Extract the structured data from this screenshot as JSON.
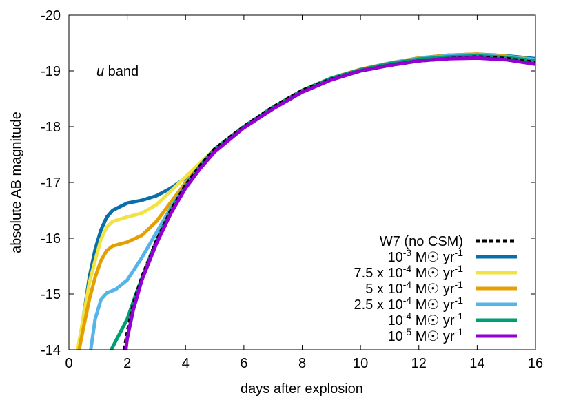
{
  "chart_data": {
    "type": "line",
    "annotation": {
      "italic": "u",
      "rest": " band"
    },
    "xlabel": "days after explosion",
    "ylabel": "absolute AB magnitude",
    "xlim": [
      0,
      16
    ],
    "ylim": [
      -14,
      -20
    ],
    "y_inverted": true,
    "xticks": [
      0,
      2,
      4,
      6,
      8,
      10,
      12,
      14,
      16
    ],
    "yticks": [
      -20,
      -19,
      -18,
      -17,
      -16,
      -15,
      -14
    ],
    "legend_position": "bottom-right",
    "grid": false,
    "series": [
      {
        "name": "W7 (no CSM)",
        "label_parts": {
          "pre": "W7 (no CSM)"
        },
        "color": "#000000",
        "dashed": true,
        "width": 5,
        "points": [
          [
            1.9,
            -14
          ],
          [
            2,
            -14.3
          ],
          [
            2.2,
            -14.8
          ],
          [
            2.5,
            -15.3
          ],
          [
            3,
            -15.95
          ],
          [
            3.5,
            -16.5
          ],
          [
            4,
            -16.95
          ],
          [
            4.5,
            -17.3
          ],
          [
            5,
            -17.6
          ],
          [
            6,
            -18.0
          ],
          [
            7,
            -18.35
          ],
          [
            8,
            -18.65
          ],
          [
            9,
            -18.85
          ],
          [
            10,
            -19.0
          ],
          [
            11,
            -19.1
          ],
          [
            12,
            -19.18
          ],
          [
            13,
            -19.22
          ],
          [
            14,
            -19.25
          ],
          [
            15,
            -19.22
          ],
          [
            16,
            -19.15
          ]
        ]
      },
      {
        "name": "10-3 M☉ yr-1",
        "label_parts": {
          "pre": "10",
          "sup1": "-3",
          "mid": " M☉ yr",
          "sup2": "-1"
        },
        "color": "#0a6ea8",
        "dashed": false,
        "width": 5,
        "points": [
          [
            0.35,
            -14
          ],
          [
            0.5,
            -14.6
          ],
          [
            0.7,
            -15.3
          ],
          [
            0.9,
            -15.8
          ],
          [
            1.1,
            -16.15
          ],
          [
            1.3,
            -16.38
          ],
          [
            1.5,
            -16.5
          ],
          [
            2,
            -16.63
          ],
          [
            2.5,
            -16.68
          ],
          [
            3,
            -16.76
          ],
          [
            3.5,
            -16.9
          ],
          [
            4,
            -17.08
          ],
          [
            4.5,
            -17.32
          ],
          [
            5,
            -17.6
          ],
          [
            6,
            -18.0
          ],
          [
            7,
            -18.35
          ],
          [
            8,
            -18.65
          ],
          [
            9,
            -18.87
          ],
          [
            10,
            -19.02
          ],
          [
            11,
            -19.14
          ],
          [
            12,
            -19.23
          ],
          [
            13,
            -19.28
          ],
          [
            14,
            -19.3
          ],
          [
            15,
            -19.27
          ],
          [
            16,
            -19.22
          ]
        ]
      },
      {
        "name": "7.5 x 10-4 M☉ yr-1",
        "label_parts": {
          "pre": "7.5 x 10",
          "sup1": "-4",
          "mid": " M☉ yr",
          "sup2": "-1"
        },
        "color": "#f0e442",
        "dashed": false,
        "width": 5,
        "points": [
          [
            0.3,
            -14
          ],
          [
            0.5,
            -14.6
          ],
          [
            0.7,
            -15.2
          ],
          [
            0.9,
            -15.6
          ],
          [
            1.1,
            -15.98
          ],
          [
            1.3,
            -16.2
          ],
          [
            1.5,
            -16.3
          ],
          [
            2,
            -16.38
          ],
          [
            2.5,
            -16.45
          ],
          [
            3,
            -16.6
          ],
          [
            3.5,
            -16.85
          ],
          [
            4,
            -17.1
          ],
          [
            4.5,
            -17.35
          ],
          [
            5,
            -17.6
          ],
          [
            6,
            -18.0
          ],
          [
            7,
            -18.35
          ],
          [
            8,
            -18.65
          ],
          [
            9,
            -18.87
          ],
          [
            10,
            -19.02
          ],
          [
            11,
            -19.13
          ],
          [
            12,
            -19.22
          ],
          [
            13,
            -19.27
          ],
          [
            14,
            -19.29
          ],
          [
            15,
            -19.26
          ],
          [
            16,
            -19.2
          ]
        ]
      },
      {
        "name": "5 x 10-4 M☉ yr-1",
        "label_parts": {
          "pre": "5 x 10",
          "sup1": "-4",
          "mid": " M☉ yr",
          "sup2": "-1"
        },
        "color": "#e69f00",
        "dashed": false,
        "width": 5,
        "points": [
          [
            0.35,
            -14
          ],
          [
            0.5,
            -14.4
          ],
          [
            0.7,
            -14.9
          ],
          [
            0.9,
            -15.3
          ],
          [
            1.1,
            -15.6
          ],
          [
            1.3,
            -15.78
          ],
          [
            1.5,
            -15.86
          ],
          [
            2,
            -15.93
          ],
          [
            2.5,
            -16.05
          ],
          [
            3,
            -16.3
          ],
          [
            3.5,
            -16.65
          ],
          [
            4,
            -17.0
          ],
          [
            4.5,
            -17.3
          ],
          [
            5,
            -17.6
          ],
          [
            6,
            -18.0
          ],
          [
            7,
            -18.35
          ],
          [
            8,
            -18.65
          ],
          [
            9,
            -18.87
          ],
          [
            10,
            -19.03
          ],
          [
            11,
            -19.14
          ],
          [
            12,
            -19.23
          ],
          [
            13,
            -19.28
          ],
          [
            14,
            -19.3
          ],
          [
            15,
            -19.26
          ],
          [
            16,
            -19.2
          ]
        ]
      },
      {
        "name": "2.5 x 10-4 M☉ yr-1",
        "label_parts": {
          "pre": "2.5 x 10",
          "sup1": "-4",
          "mid": " M☉ yr",
          "sup2": "-1"
        },
        "color": "#56b4e9",
        "dashed": false,
        "width": 5,
        "points": [
          [
            0.75,
            -14
          ],
          [
            0.9,
            -14.55
          ],
          [
            1.1,
            -14.9
          ],
          [
            1.3,
            -15.02
          ],
          [
            1.6,
            -15.08
          ],
          [
            2,
            -15.25
          ],
          [
            2.5,
            -15.65
          ],
          [
            3,
            -16.1
          ],
          [
            3.5,
            -16.55
          ],
          [
            4,
            -16.95
          ],
          [
            4.5,
            -17.3
          ],
          [
            5,
            -17.6
          ],
          [
            6,
            -18.0
          ],
          [
            7,
            -18.35
          ],
          [
            8,
            -18.65
          ],
          [
            9,
            -18.87
          ],
          [
            10,
            -19.02
          ],
          [
            11,
            -19.14
          ],
          [
            12,
            -19.22
          ],
          [
            13,
            -19.27
          ],
          [
            14,
            -19.28
          ],
          [
            15,
            -19.25
          ],
          [
            16,
            -19.2
          ]
        ]
      },
      {
        "name": "10-4 M☉ yr-1",
        "label_parts": {
          "pre": "10",
          "sup1": "-4",
          "mid": " M☉ yr",
          "sup2": "-1"
        },
        "color": "#009e73",
        "dashed": false,
        "width": 5,
        "points": [
          [
            1.45,
            -14
          ],
          [
            1.6,
            -14.15
          ],
          [
            1.8,
            -14.35
          ],
          [
            2,
            -14.55
          ],
          [
            2.3,
            -15.0
          ],
          [
            2.7,
            -15.55
          ],
          [
            3,
            -15.95
          ],
          [
            3.5,
            -16.5
          ],
          [
            4,
            -16.95
          ],
          [
            4.5,
            -17.3
          ],
          [
            5,
            -17.6
          ],
          [
            6,
            -18.0
          ],
          [
            7,
            -18.35
          ],
          [
            8,
            -18.65
          ],
          [
            9,
            -18.87
          ],
          [
            10,
            -19.02
          ],
          [
            11,
            -19.13
          ],
          [
            12,
            -19.21
          ],
          [
            13,
            -19.25
          ],
          [
            14,
            -19.27
          ],
          [
            15,
            -19.24
          ],
          [
            16,
            -19.18
          ]
        ]
      },
      {
        "name": "10-5 M☉ yr-1",
        "label_parts": {
          "pre": "10",
          "sup1": "-5",
          "mid": " M☉ yr",
          "sup2": "-1"
        },
        "color": "#9400d3",
        "dashed": false,
        "width": 5,
        "points": [
          [
            1.95,
            -14
          ],
          [
            2,
            -14.2
          ],
          [
            2.2,
            -14.7
          ],
          [
            2.5,
            -15.25
          ],
          [
            3,
            -15.9
          ],
          [
            3.5,
            -16.45
          ],
          [
            4,
            -16.9
          ],
          [
            4.5,
            -17.25
          ],
          [
            5,
            -17.55
          ],
          [
            6,
            -17.98
          ],
          [
            7,
            -18.32
          ],
          [
            8,
            -18.62
          ],
          [
            9,
            -18.84
          ],
          [
            10,
            -19.0
          ],
          [
            11,
            -19.1
          ],
          [
            12,
            -19.18
          ],
          [
            13,
            -19.22
          ],
          [
            14,
            -19.23
          ],
          [
            15,
            -19.2
          ],
          [
            16,
            -19.12
          ]
        ]
      }
    ]
  }
}
